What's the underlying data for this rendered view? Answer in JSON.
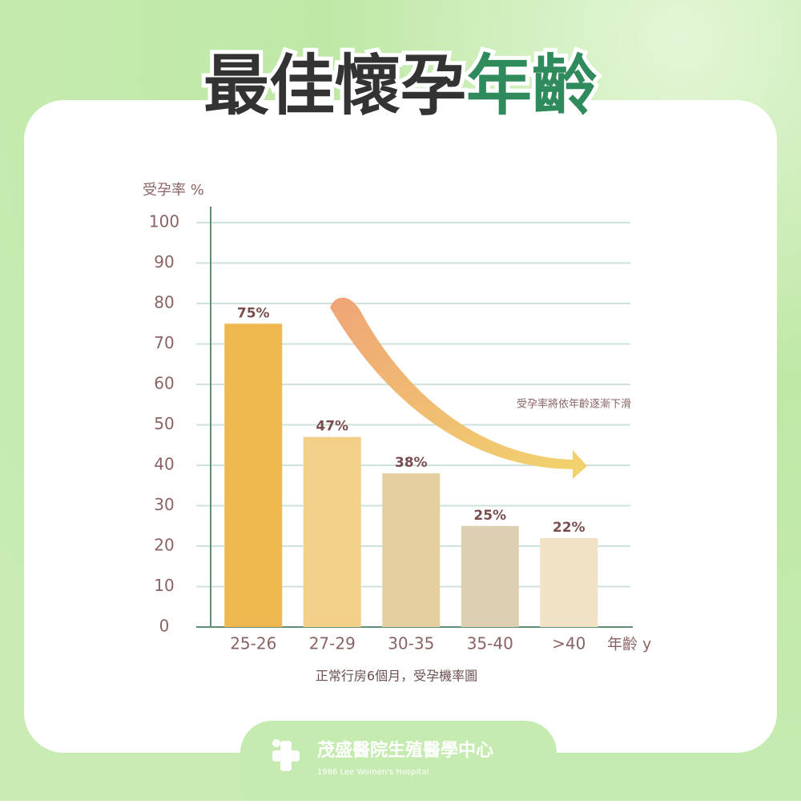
{
  "header": {
    "title_main": "最佳懷孕",
    "title_accent": "年齡"
  },
  "chart_data": {
    "type": "bar",
    "y_label": "受孕率 %",
    "x_label": "年齡 y",
    "categories": [
      "25-26",
      "27-29",
      "30-35",
      "35-40",
      ">40"
    ],
    "values": [
      75,
      47,
      38,
      25,
      22
    ],
    "value_labels": [
      "75%",
      "47%",
      "38%",
      "25%",
      "22%"
    ],
    "colors": [
      "#f0b94f",
      "#f3d08a",
      "#e6cf9e",
      "#ddcfb2",
      "#f1e2c6"
    ],
    "ylim": [
      0,
      100
    ],
    "yticks": [
      0,
      10,
      20,
      30,
      40,
      50,
      60,
      70,
      80,
      90,
      100
    ],
    "grid": true,
    "annotation": "受孕率將依年齡逐漸下滑",
    "caption": "正常行房6個月，受孕機率圖"
  },
  "footer": {
    "name": "茂盛醫院生殖醫學中心",
    "subtitle": "1986 Lee Women's Hospital"
  }
}
